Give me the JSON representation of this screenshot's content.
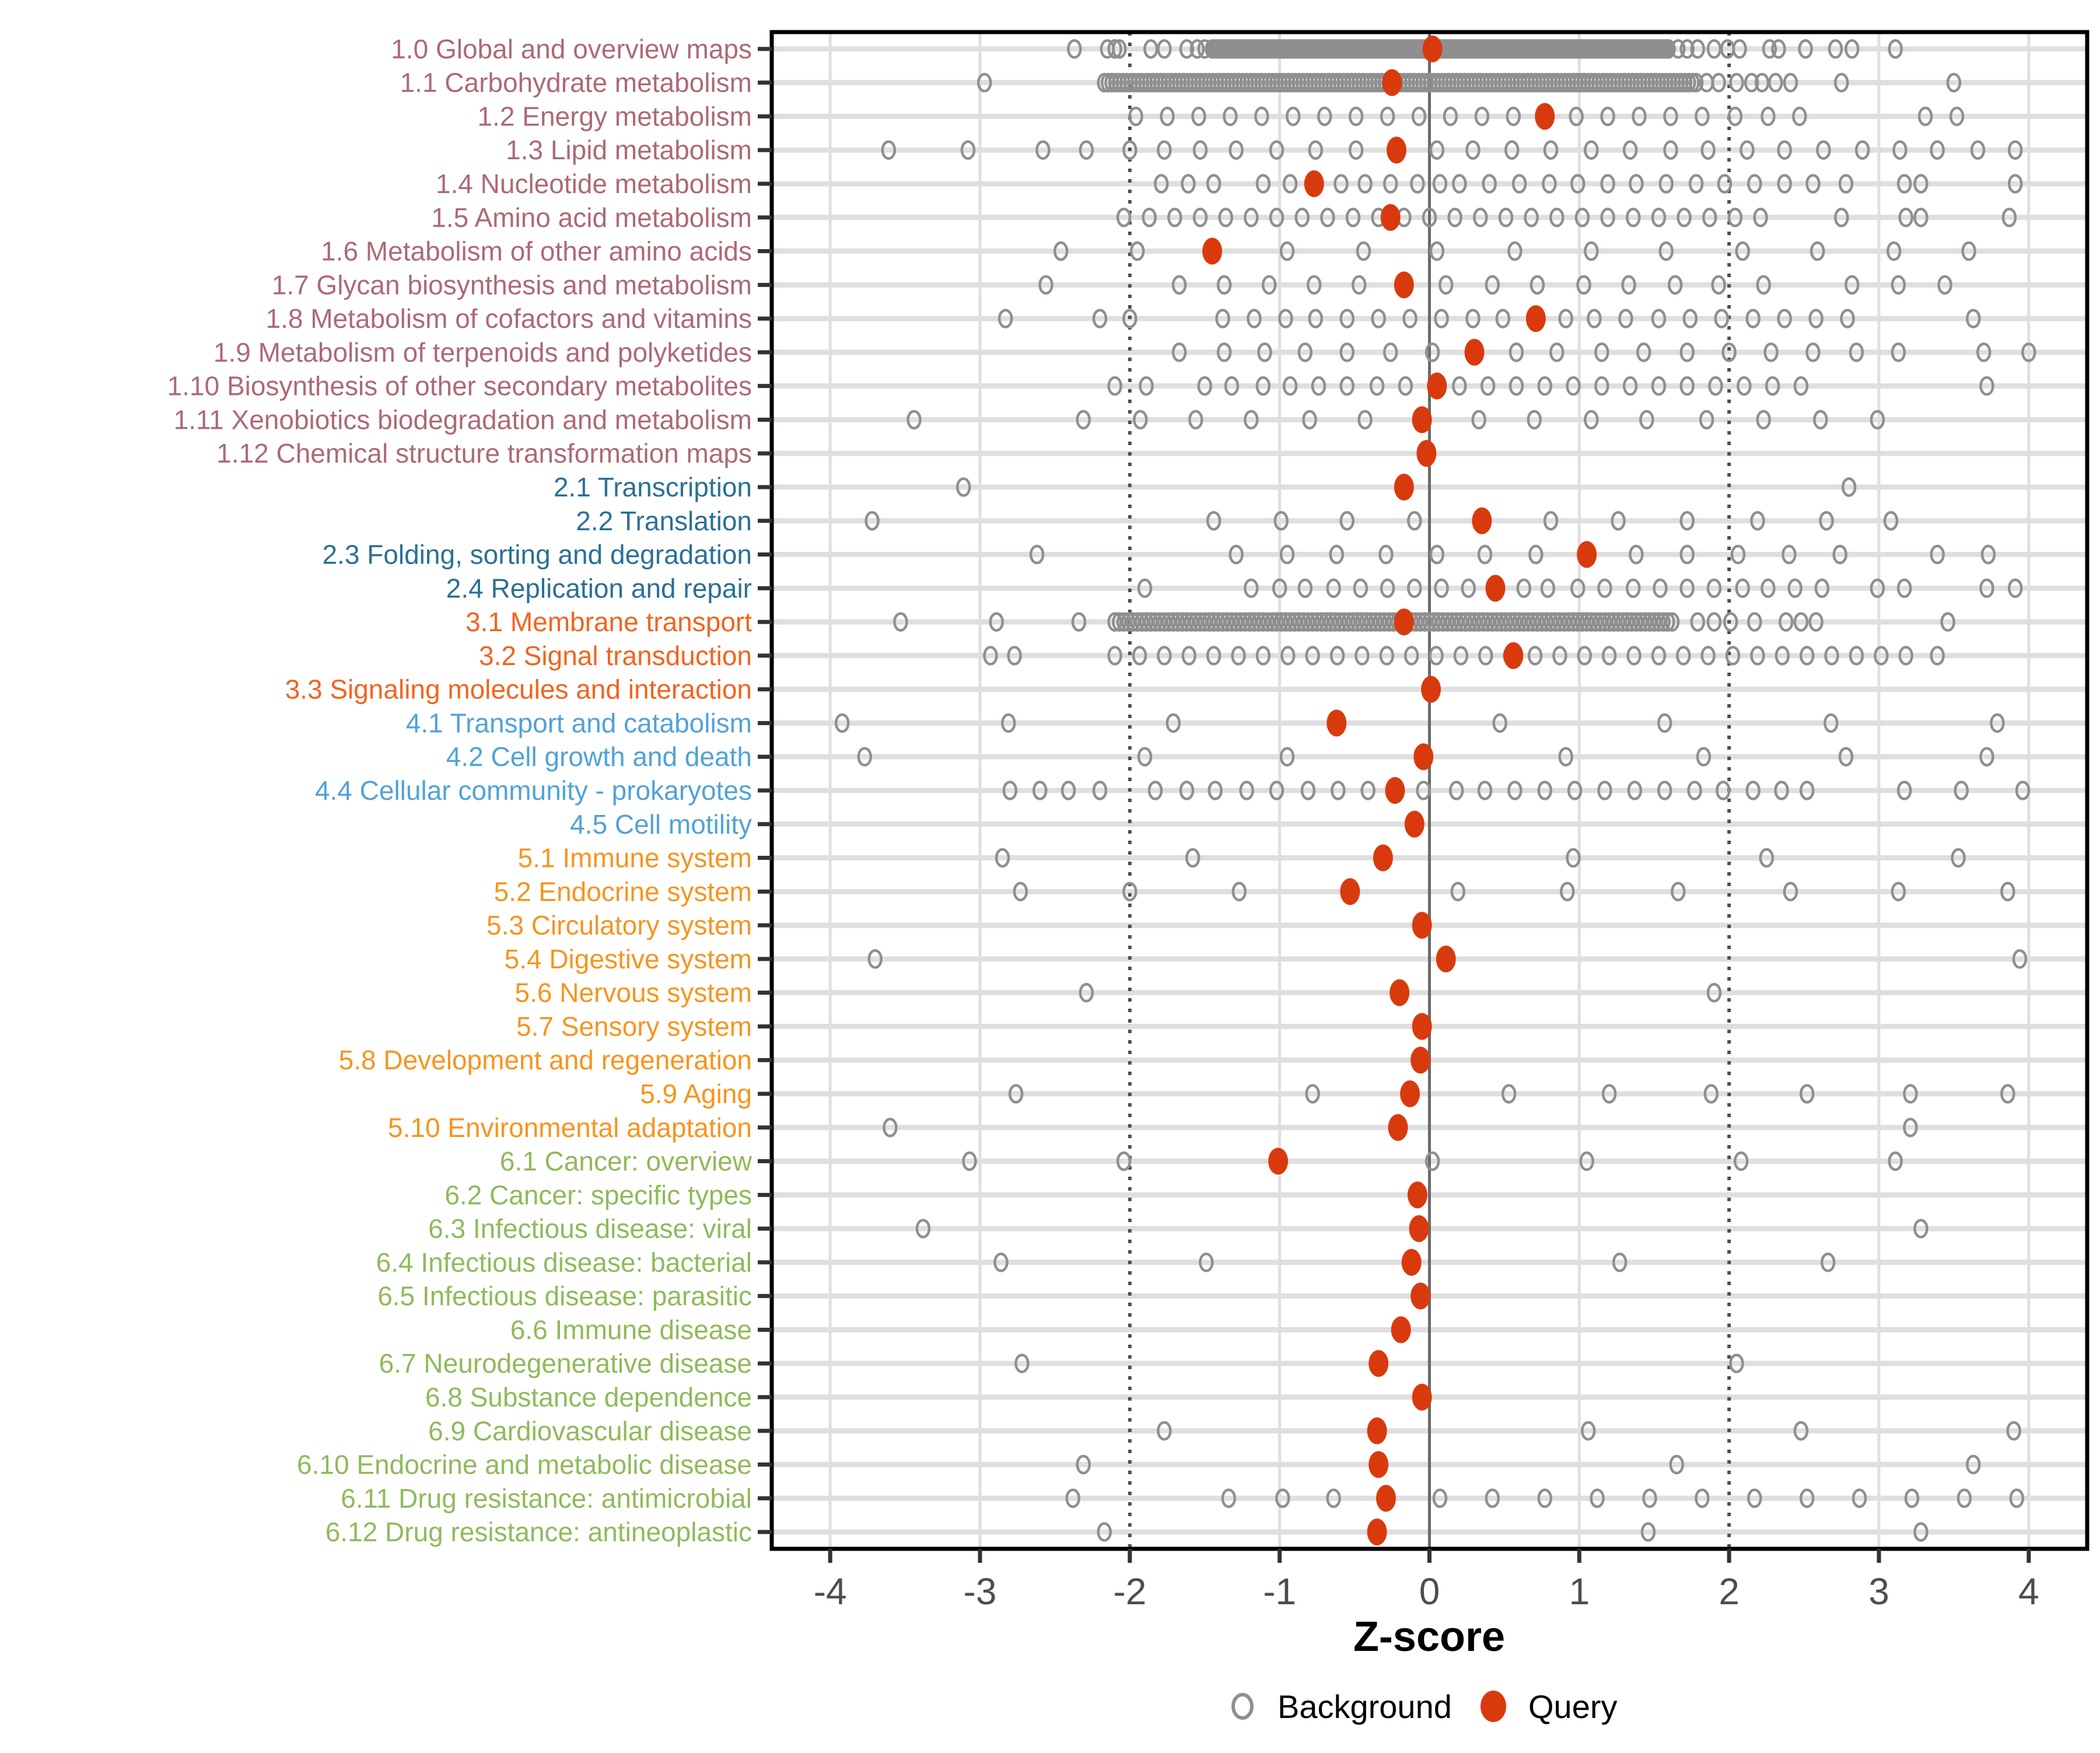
{
  "chart_data": {
    "type": "scatter",
    "title": "",
    "xlabel": "Z-score",
    "xlim": [
      -4.39,
      4.39
    ],
    "xticks": [
      -4,
      -3,
      -2,
      -1,
      0,
      1,
      2,
      3,
      4
    ],
    "reference_lines": {
      "solid": [
        0
      ],
      "dotted": [
        -2,
        2
      ]
    },
    "legend_position": "bottom",
    "grid": true,
    "colors": {
      "group1": "#AC6A75",
      "group2": "#2B7095",
      "group3": "#F2641F",
      "group4": "#51A2D8",
      "group5": "#F7941F",
      "group6": "#8FBA5A",
      "query": "#D93A0D",
      "background_point": "#8F8F8F",
      "grid_major": "#DFDFDF",
      "ref_dotted": "#4F4F4F",
      "ref_solid": "#6B6B6B",
      "panel_border": "#000000",
      "tick": "#333333",
      "tick_label": "#4D4D4D"
    },
    "rows": [
      {
        "label": "1.0 Global and overview maps",
        "group": "group1",
        "query": 0.02,
        "background": {
          "bands": [
            {
              "from": -1.45,
              "to": 1.6,
              "step": 0.015
            }
          ],
          "points": [
            -2.37,
            -2.15,
            -2.1,
            -2.07,
            -1.86,
            -1.77,
            -1.62,
            -1.55,
            -1.5,
            1.66,
            1.72,
            1.79,
            1.9,
            1.99,
            2.07,
            2.27,
            2.33,
            2.51,
            2.71,
            2.82,
            3.11
          ]
        }
      },
      {
        "label": "1.1 Carbohydrate metabolism",
        "group": "group1",
        "query": -0.25,
        "background": {
          "bands": [
            {
              "from": -2.17,
              "to": 1.78,
              "step": 0.025
            }
          ],
          "points": [
            -2.97,
            1.85,
            1.93,
            2.05,
            2.15,
            2.22,
            2.31,
            2.41,
            2.75,
            3.5
          ]
        }
      },
      {
        "label": "1.2 Energy metabolism",
        "group": "group1",
        "query": 0.77,
        "background": {
          "bands": [],
          "points": [
            -1.96,
            -1.75,
            -1.54,
            -1.33,
            -1.12,
            -0.91,
            -0.7,
            -0.49,
            -0.28,
            -0.07,
            0.14,
            0.35,
            0.56,
            0.98,
            1.19,
            1.4,
            1.61,
            1.82,
            2.04,
            2.26,
            2.47,
            3.31,
            3.52
          ]
        }
      },
      {
        "label": "1.3 Lipid metabolism",
        "group": "group1",
        "query": -0.22,
        "background": {
          "bands": [],
          "points": [
            -3.61,
            -3.08,
            -2.58,
            -2.29,
            -2.0,
            -1.77,
            -1.53,
            -1.29,
            -1.02,
            -0.76,
            -0.49,
            0.05,
            0.29,
            0.55,
            0.81,
            1.08,
            1.34,
            1.61,
            1.86,
            2.12,
            2.37,
            2.63,
            2.89,
            3.14,
            3.39,
            3.66,
            3.91
          ]
        }
      },
      {
        "label": "1.4 Nucleotide metabolism",
        "group": "group1",
        "query": -0.77,
        "background": {
          "bands": [],
          "points": [
            -1.79,
            -1.61,
            -1.44,
            -1.11,
            -0.93,
            -0.59,
            -0.43,
            -0.26,
            -0.08,
            0.07,
            0.2,
            0.4,
            0.6,
            0.8,
            0.99,
            1.19,
            1.38,
            1.58,
            1.78,
            1.97,
            2.17,
            2.37,
            2.56,
            2.78,
            3.17,
            3.28,
            3.91
          ]
        }
      },
      {
        "label": "1.5 Amino acid metabolism",
        "group": "group1",
        "query": -0.26,
        "background": {
          "bands": [
            {
              "from": -2.04,
              "to": 2.25,
              "step": 0.17
            }
          ],
          "points": [
            2.75,
            3.18,
            3.28,
            3.87
          ]
        }
      },
      {
        "label": "1.6 Metabolism of other amino acids",
        "group": "group1",
        "query": -1.45,
        "background": {
          "bands": [],
          "points": [
            -2.46,
            -1.95,
            -0.95,
            -0.44,
            0.05,
            0.57,
            1.08,
            1.58,
            2.09,
            2.59,
            3.1,
            3.6
          ]
        }
      },
      {
        "label": "1.7 Glycan biosynthesis and metabolism",
        "group": "group1",
        "query": -0.17,
        "background": {
          "bands": [],
          "points": [
            -2.56,
            -1.67,
            -1.37,
            -1.07,
            -0.77,
            -0.47,
            0.11,
            0.42,
            0.72,
            1.03,
            1.33,
            1.64,
            1.93,
            2.23,
            2.82,
            3.13,
            3.44
          ]
        }
      },
      {
        "label": "1.8 Metabolism of cofactors and vitamins",
        "group": "group1",
        "query": 0.71,
        "background": {
          "bands": [],
          "points": [
            -2.83,
            -2.2,
            -2.0,
            -1.38,
            -1.17,
            -0.96,
            -0.76,
            -0.55,
            -0.34,
            -0.13,
            0.08,
            0.29,
            0.49,
            0.91,
            1.1,
            1.31,
            1.53,
            1.74,
            1.95,
            2.16,
            2.37,
            2.58,
            2.79,
            3.63
          ]
        }
      },
      {
        "label": "1.9 Metabolism of terpenoids and polyketides",
        "group": "group1",
        "query": 0.3,
        "background": {
          "bands": [],
          "points": [
            -1.67,
            -1.37,
            -1.1,
            -0.83,
            -0.55,
            -0.26,
            0.02,
            0.58,
            0.85,
            1.15,
            1.43,
            1.72,
            2.0,
            2.28,
            2.56,
            2.85,
            3.13,
            3.7,
            4.0
          ]
        }
      },
      {
        "label": "1.10 Biosynthesis of other secondary metabolites",
        "group": "group1",
        "query": 0.05,
        "background": {
          "bands": [],
          "points": [
            -2.1,
            -1.89,
            -1.5,
            -1.32,
            -1.11,
            -0.93,
            -0.74,
            -0.55,
            -0.35,
            -0.16,
            0.2,
            0.39,
            0.58,
            0.77,
            0.96,
            1.15,
            1.34,
            1.53,
            1.72,
            1.91,
            2.1,
            2.29,
            2.48,
            3.72
          ]
        }
      },
      {
        "label": "1.11 Xenobiotics biodegradation and metabolism",
        "group": "group1",
        "query": -0.05,
        "background": {
          "bands": [],
          "points": [
            -3.44,
            -2.31,
            -1.93,
            -1.56,
            -1.19,
            -0.8,
            -0.43,
            0.33,
            0.7,
            1.08,
            1.45,
            1.85,
            2.23,
            2.61,
            2.99
          ]
        }
      },
      {
        "label": "1.12 Chemical structure transformation maps",
        "group": "group1",
        "query": -0.02,
        "background": {
          "bands": [],
          "points": []
        }
      },
      {
        "label": "2.1 Transcription",
        "group": "group2",
        "query": -0.17,
        "background": {
          "bands": [],
          "points": [
            -3.11,
            2.8
          ]
        }
      },
      {
        "label": "2.2 Translation",
        "group": "group2",
        "query": 0.35,
        "background": {
          "bands": [],
          "points": [
            -3.72,
            -1.44,
            -0.99,
            -0.55,
            -0.1,
            0.81,
            1.26,
            1.72,
            2.19,
            2.65,
            3.08
          ]
        }
      },
      {
        "label": "2.3 Folding, sorting and degradation",
        "group": "group2",
        "query": 1.05,
        "background": {
          "bands": [],
          "points": [
            -2.62,
            -1.29,
            -0.95,
            -0.62,
            -0.29,
            0.05,
            0.37,
            0.71,
            1.38,
            1.72,
            2.06,
            2.4,
            2.74,
            3.39,
            3.73
          ]
        }
      },
      {
        "label": "2.4 Replication and repair",
        "group": "group2",
        "query": 0.44,
        "background": {
          "bands": [],
          "points": [
            -1.9,
            -1.19,
            -1.0,
            -0.83,
            -0.64,
            -0.46,
            -0.28,
            -0.1,
            0.08,
            0.26,
            0.63,
            0.79,
            0.99,
            1.17,
            1.36,
            1.54,
            1.72,
            1.9,
            2.09,
            2.26,
            2.44,
            2.62,
            2.99,
            3.17,
            3.72,
            3.91
          ]
        }
      },
      {
        "label": "3.1 Membrane transport",
        "group": "group3",
        "query": -0.17,
        "background": {
          "bands": [
            {
              "from": -2.1,
              "to": 1.64,
              "step": 0.03
            }
          ],
          "points": [
            -3.53,
            -2.89,
            -2.34,
            1.79,
            1.9,
            2.01,
            2.17,
            2.38,
            2.48,
            2.58,
            3.46
          ]
        }
      },
      {
        "label": "3.2 Signal transduction",
        "group": "group3",
        "query": 0.56,
        "background": {
          "bands": [
            {
              "from": -2.1,
              "to": 3.18,
              "step": 0.165
            }
          ],
          "points": [
            -2.93,
            -2.77,
            3.39
          ]
        }
      },
      {
        "label": "3.3 Signaling molecules and interaction",
        "group": "group3",
        "query": 0.01,
        "background": {
          "bands": [],
          "points": []
        }
      },
      {
        "label": "4.1 Transport and catabolism",
        "group": "group4",
        "query": -0.62,
        "background": {
          "bands": [],
          "points": [
            -3.92,
            -2.81,
            -1.71,
            0.47,
            1.57,
            2.68,
            3.79
          ]
        }
      },
      {
        "label": "4.2 Cell growth and death",
        "group": "group4",
        "query": -0.04,
        "background": {
          "bands": [],
          "points": [
            -3.77,
            -1.9,
            -0.95,
            0.91,
            1.83,
            2.78,
            3.72
          ]
        }
      },
      {
        "label": "4.4 Cellular community - prokaryotes",
        "group": "group4",
        "query": -0.23,
        "background": {
          "bands": [],
          "points": [
            -2.8,
            -2.6,
            -2.41,
            -2.2,
            -1.83,
            -1.62,
            -1.43,
            -1.22,
            -1.02,
            -0.81,
            -0.61,
            -0.41,
            -0.04,
            0.18,
            0.37,
            0.57,
            0.77,
            0.97,
            1.17,
            1.37,
            1.57,
            1.77,
            1.96,
            2.16,
            2.35,
            2.52,
            3.17,
            3.55,
            3.96
          ]
        }
      },
      {
        "label": "4.5 Cell motility",
        "group": "group4",
        "query": -0.1,
        "background": {
          "bands": [],
          "points": []
        }
      },
      {
        "label": "5.1 Immune system",
        "group": "group5",
        "query": -0.31,
        "background": {
          "bands": [],
          "points": [
            -2.85,
            -1.58,
            0.96,
            2.25,
            3.53
          ]
        }
      },
      {
        "label": "5.2 Endocrine system",
        "group": "group5",
        "query": -0.53,
        "background": {
          "bands": [],
          "points": [
            -2.73,
            -2.0,
            -1.27,
            0.19,
            0.92,
            1.66,
            2.41,
            3.13,
            3.86
          ]
        }
      },
      {
        "label": "5.3 Circulatory system",
        "group": "group5",
        "query": -0.05,
        "background": {
          "bands": [],
          "points": []
        }
      },
      {
        "label": "5.4 Digestive system",
        "group": "group5",
        "query": 0.11,
        "background": {
          "bands": [],
          "points": [
            -3.7,
            3.94
          ]
        }
      },
      {
        "label": "5.6 Nervous system",
        "group": "group5",
        "query": -0.2,
        "background": {
          "bands": [],
          "points": [
            -2.29,
            1.9
          ]
        }
      },
      {
        "label": "5.7 Sensory system",
        "group": "group5",
        "query": -0.05,
        "background": {
          "bands": [],
          "points": []
        }
      },
      {
        "label": "5.8 Development and regeneration",
        "group": "group5",
        "query": -0.06,
        "background": {
          "bands": [],
          "points": []
        }
      },
      {
        "label": "5.9 Aging",
        "group": "group5",
        "query": -0.13,
        "background": {
          "bands": [],
          "points": [
            -2.76,
            -0.78,
            0.53,
            1.2,
            1.88,
            2.52,
            3.21,
            3.86
          ]
        }
      },
      {
        "label": "5.10 Environmental adaptation",
        "group": "group5",
        "query": -0.21,
        "background": {
          "bands": [],
          "points": [
            -3.6,
            3.21
          ]
        }
      },
      {
        "label": "6.1 Cancer: overview",
        "group": "group6",
        "query": -1.01,
        "background": {
          "bands": [],
          "points": [
            -3.07,
            -2.04,
            0.02,
            1.05,
            2.08,
            3.11
          ]
        }
      },
      {
        "label": "6.2 Cancer: specific types",
        "group": "group6",
        "query": -0.08,
        "background": {
          "bands": [],
          "points": []
        }
      },
      {
        "label": "6.3 Infectious disease: viral",
        "group": "group6",
        "query": -0.07,
        "background": {
          "bands": [],
          "points": [
            -3.38,
            3.28
          ]
        }
      },
      {
        "label": "6.4 Infectious disease: bacterial",
        "group": "group6",
        "query": -0.12,
        "background": {
          "bands": [],
          "points": [
            -2.86,
            -1.49,
            1.27,
            2.66
          ]
        }
      },
      {
        "label": "6.5 Infectious disease: parasitic",
        "group": "group6",
        "query": -0.06,
        "background": {
          "bands": [],
          "points": []
        }
      },
      {
        "label": "6.6 Immune disease",
        "group": "group6",
        "query": -0.19,
        "background": {
          "bands": [],
          "points": []
        }
      },
      {
        "label": "6.7 Neurodegenerative disease",
        "group": "group6",
        "query": -0.34,
        "background": {
          "bands": [],
          "points": [
            -2.72,
            2.05
          ]
        }
      },
      {
        "label": "6.8 Substance dependence",
        "group": "group6",
        "query": -0.05,
        "background": {
          "bands": [],
          "points": []
        }
      },
      {
        "label": "6.9 Cardiovascular disease",
        "group": "group6",
        "query": -0.35,
        "background": {
          "bands": [],
          "points": [
            -1.77,
            1.06,
            2.48,
            3.9
          ]
        }
      },
      {
        "label": "6.10 Endocrine and metabolic disease",
        "group": "group6",
        "query": -0.34,
        "background": {
          "bands": [],
          "points": [
            -2.31,
            1.65,
            3.63
          ]
        }
      },
      {
        "label": "6.11 Drug resistance: antimicrobial",
        "group": "group6",
        "query": -0.29,
        "background": {
          "bands": [],
          "points": [
            -2.38,
            -1.34,
            -0.98,
            -0.64,
            0.07,
            0.42,
            0.77,
            1.12,
            1.47,
            1.82,
            2.17,
            2.52,
            2.87,
            3.22,
            3.57,
            3.92
          ]
        }
      },
      {
        "label": "6.12 Drug resistance: antineoplastic",
        "group": "group6",
        "query": -0.35,
        "background": {
          "bands": [],
          "points": [
            -2.17,
            1.46,
            3.28
          ]
        }
      }
    ]
  },
  "axis": {
    "title": "Z-score"
  },
  "legend": {
    "background_label": "Background",
    "query_label": "Query"
  }
}
